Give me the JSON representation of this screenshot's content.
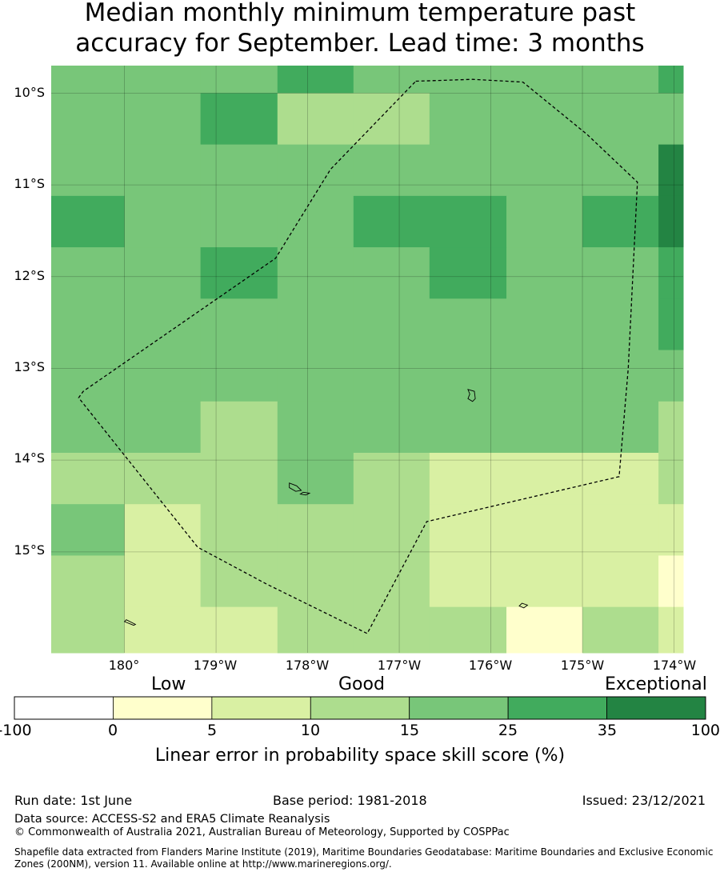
{
  "title_line1": "Median monthly minimum temperature past",
  "title_line2": "accuracy for September. Lead time: 3 months",
  "map": {
    "lon_range": [
      -180.8,
      -173.9
    ],
    "lat_range": [
      -16.1,
      -9.7
    ],
    "grid": {
      "lon_edges": [
        -180.8,
        -180.0,
        -179.17,
        -178.33,
        -177.5,
        -176.67,
        -175.83,
        -175.0,
        -174.17,
        -173.9
      ],
      "lat_edges": [
        -9.7,
        -10.0,
        -10.56,
        -11.12,
        -11.68,
        -12.24,
        -12.8,
        -13.36,
        -13.92,
        -14.48,
        -15.04,
        -15.6,
        -16.1
      ],
      "classes": [
        [
          4,
          4,
          4,
          5,
          4,
          4,
          4,
          4,
          5
        ],
        [
          4,
          4,
          5,
          3,
          3,
          4,
          4,
          4,
          4
        ],
        [
          4,
          4,
          4,
          4,
          4,
          4,
          4,
          4,
          6
        ],
        [
          5,
          4,
          4,
          4,
          5,
          5,
          4,
          5,
          6
        ],
        [
          4,
          4,
          5,
          4,
          4,
          5,
          4,
          4,
          5
        ],
        [
          4,
          4,
          4,
          4,
          4,
          4,
          4,
          4,
          5
        ],
        [
          4,
          4,
          4,
          4,
          4,
          4,
          4,
          4,
          4
        ],
        [
          4,
          4,
          3,
          4,
          4,
          4,
          4,
          4,
          3
        ],
        [
          3,
          3,
          3,
          4,
          3,
          2,
          2,
          2,
          3
        ],
        [
          4,
          2,
          3,
          3,
          3,
          2,
          2,
          2,
          2
        ],
        [
          3,
          2,
          3,
          3,
          3,
          2,
          2,
          2,
          1
        ],
        [
          3,
          2,
          2,
          3,
          3,
          3,
          1,
          3,
          2
        ]
      ]
    },
    "lat_ticks": [
      "10°S",
      "11°S",
      "12°S",
      "13°S",
      "14°S",
      "15°S"
    ],
    "lon_ticks": [
      "180°",
      "179°W",
      "178°W",
      "177°W",
      "176°W",
      "175°W",
      "174°W"
    ],
    "eez_boundary": [
      [
        -176.82,
        -9.87
      ],
      [
        -176.2,
        -9.85
      ],
      [
        -175.65,
        -9.88
      ],
      [
        -174.95,
        -10.45
      ],
      [
        -174.4,
        -10.97
      ],
      [
        -174.5,
        -13.0
      ],
      [
        -174.6,
        -14.18
      ],
      [
        -176.7,
        -14.67
      ],
      [
        -177.35,
        -15.89
      ],
      [
        -178.45,
        -15.35
      ],
      [
        -179.2,
        -14.95
      ],
      [
        -180.5,
        -13.32
      ],
      [
        -180.45,
        -13.25
      ],
      [
        -178.35,
        -11.8
      ],
      [
        -177.75,
        -10.83
      ],
      [
        -176.82,
        -9.87
      ]
    ],
    "islands": [
      [
        [
          -176.25,
          -13.23
        ],
        [
          -176.18,
          -13.25
        ],
        [
          -176.17,
          -13.33
        ],
        [
          -176.2,
          -13.36
        ],
        [
          -176.25,
          -13.33
        ],
        [
          -176.23,
          -13.28
        ]
      ],
      [
        [
          -178.2,
          -14.25
        ],
        [
          -178.12,
          -14.28
        ],
        [
          -178.07,
          -14.33
        ],
        [
          -178.13,
          -14.34
        ],
        [
          -178.2,
          -14.3
        ]
      ],
      [
        [
          -178.05,
          -14.35
        ],
        [
          -177.98,
          -14.36
        ],
        [
          -178.02,
          -14.38
        ],
        [
          -178.08,
          -14.37
        ]
      ],
      [
        [
          -175.66,
          -15.56
        ],
        [
          -175.6,
          -15.58
        ],
        [
          -175.64,
          -15.61
        ],
        [
          -175.69,
          -15.59
        ]
      ],
      [
        [
          -179.98,
          -15.74
        ],
        [
          -179.88,
          -15.79
        ],
        [
          -179.9,
          -15.8
        ],
        [
          -180.0,
          -15.76
        ]
      ]
    ]
  },
  "colorbar": {
    "categories": [
      {
        "label": "Low"
      },
      {
        "label": "Good"
      },
      {
        "label": "Exceptional"
      }
    ],
    "boundaries": [
      "-100",
      "0",
      "5",
      "10",
      "15",
      "25",
      "35",
      "100"
    ],
    "colors": [
      "#ffffff",
      "#ffffcc",
      "#d9f0a3",
      "#addd8e",
      "#78c679",
      "#41ab5d",
      "#238443"
    ],
    "title": "Linear error in probability space skill score (%)"
  },
  "footer": {
    "run_date": "Run date: 1st June",
    "base_period": "Base period: 1981-2018",
    "issued": "Issued: 23/12/2021",
    "data_source": "Data source: ACCESS-S2 and ERA5 Climate Reanalysis",
    "copyright": "© Commonwealth of Australia 2021, Australian Bureau of Meteorology, Supported by COSPPac",
    "shapefile_line1": "Shapefile data extracted from Flanders Marine Institute (2019), Maritime Boundaries Geodatabase: Maritime Boundaries and Exclusive Economic",
    "shapefile_line2": "Zones (200NM), version 11. Available online at http://www.marineregions.org/."
  }
}
